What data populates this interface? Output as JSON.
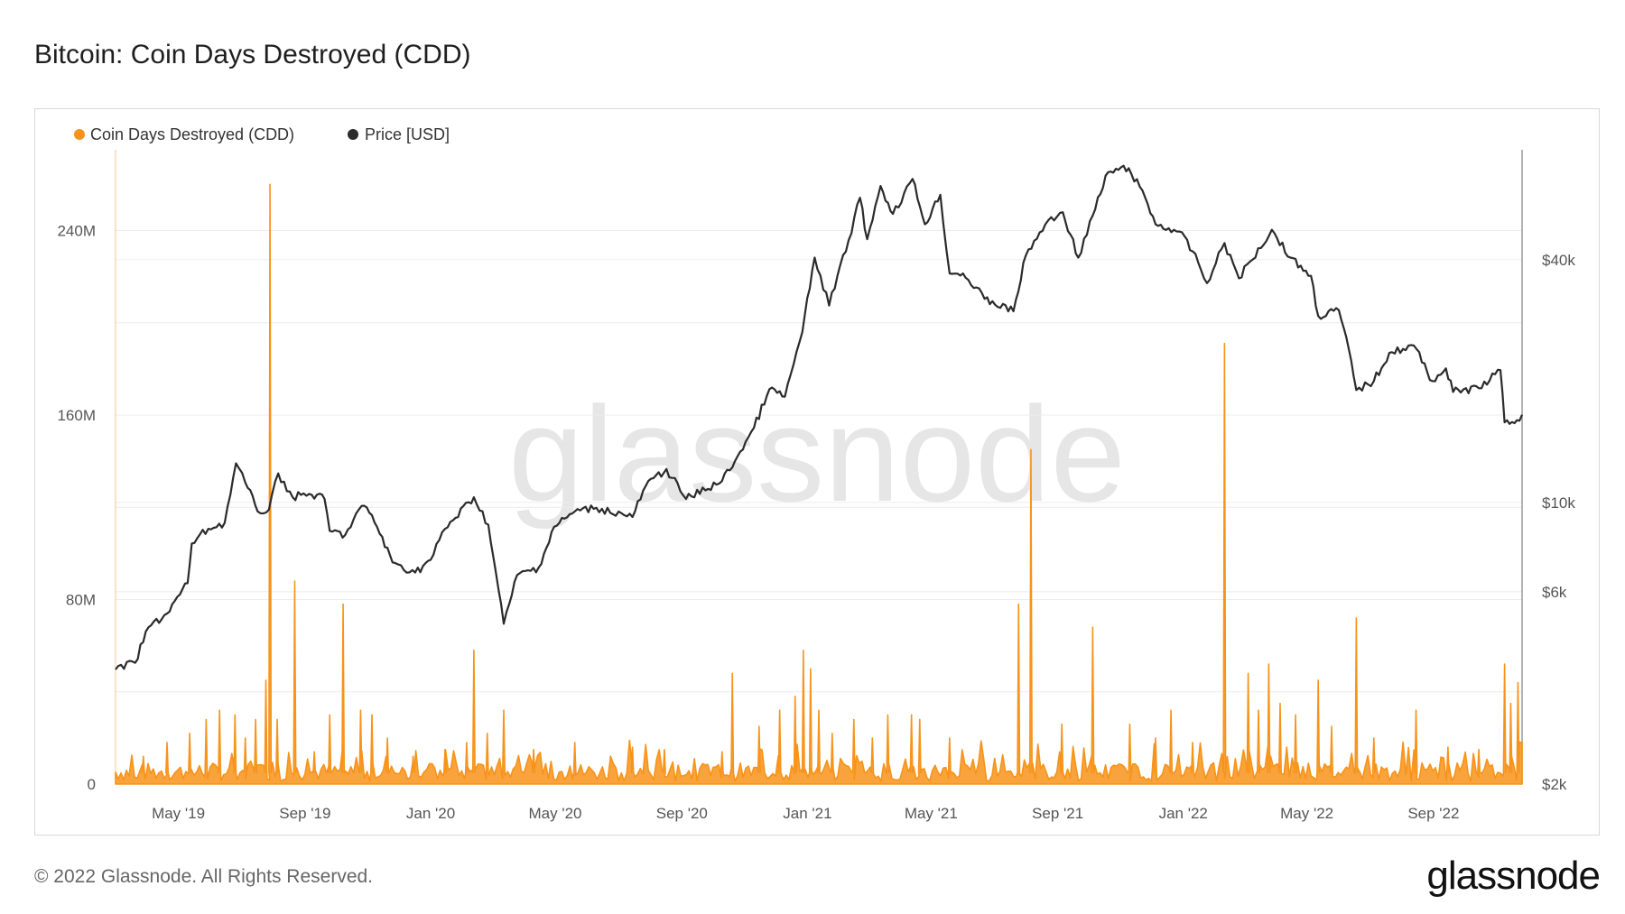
{
  "title": "Bitcoin: Coin Days Destroyed (CDD)",
  "footer": "© 2022 Glassnode. All Rights Reserved.",
  "logo": "glassnode",
  "watermark": "glassnode",
  "colors": {
    "cdd": "#f7931a",
    "price": "#2b2b2b",
    "grid": "#ececec",
    "watermark": "#e6e6e6"
  },
  "chart_data": {
    "type": "line",
    "title": "Bitcoin: Coin Days Destroyed (CDD)",
    "legend": {
      "position": "top-left",
      "entries": [
        "Coin Days Destroyed (CDD)",
        "Price [USD]"
      ]
    },
    "grid": true,
    "x_ticks": [
      "May '19",
      "Sep '19",
      "Jan '20",
      "May '20",
      "Sep '20",
      "Jan '21",
      "May '21",
      "Sep '21",
      "Jan '22",
      "May '22",
      "Sep '22"
    ],
    "x_range": [
      "2019-03-01",
      "2022-11-26"
    ],
    "y_left": {
      "ticks": [
        "0",
        "80M",
        "160M",
        "240M"
      ],
      "range": [
        0,
        275000000
      ]
    },
    "y_right": {
      "scale": "log",
      "ticks": [
        "$2k",
        "$6k",
        "$10k",
        "$40k"
      ],
      "range": [
        2000,
        75000
      ]
    },
    "series": [
      {
        "name": "Coin Days Destroyed (CDD)",
        "axis": "left",
        "style": "area-spikes",
        "baseline": 5000000,
        "spikes": [
          [
            "2019-03-28",
            12000000
          ],
          [
            "2019-04-20",
            18000000
          ],
          [
            "2019-05-12",
            22000000
          ],
          [
            "2019-05-28",
            28000000
          ],
          [
            "2019-06-10",
            32000000
          ],
          [
            "2019-06-25",
            30000000
          ],
          [
            "2019-07-05",
            20000000
          ],
          [
            "2019-07-15",
            28000000
          ],
          [
            "2019-07-25",
            45000000
          ],
          [
            "2019-07-29",
            260000000
          ],
          [
            "2019-08-05",
            28000000
          ],
          [
            "2019-08-22",
            88000000
          ],
          [
            "2019-09-10",
            14000000
          ],
          [
            "2019-09-25",
            30000000
          ],
          [
            "2019-10-08",
            78000000
          ],
          [
            "2019-10-25",
            32000000
          ],
          [
            "2019-11-05",
            30000000
          ],
          [
            "2019-11-20",
            20000000
          ],
          [
            "2019-12-15",
            12000000
          ],
          [
            "2020-01-15",
            15000000
          ],
          [
            "2020-02-05",
            18000000
          ],
          [
            "2020-02-12",
            58000000
          ],
          [
            "2020-02-25",
            22000000
          ],
          [
            "2020-03-12",
            32000000
          ],
          [
            "2020-04-10",
            15000000
          ],
          [
            "2020-05-20",
            18000000
          ],
          [
            "2020-07-15",
            16000000
          ],
          [
            "2020-08-15",
            15000000
          ],
          [
            "2020-10-10",
            14000000
          ],
          [
            "2020-10-20",
            48000000
          ],
          [
            "2020-11-15",
            25000000
          ],
          [
            "2020-12-05",
            32000000
          ],
          [
            "2020-12-20",
            38000000
          ],
          [
            "2020-12-28",
            58000000
          ],
          [
            "2021-01-04",
            50000000
          ],
          [
            "2021-01-12",
            32000000
          ],
          [
            "2021-01-25",
            22000000
          ],
          [
            "2021-02-15",
            28000000
          ],
          [
            "2021-03-05",
            20000000
          ],
          [
            "2021-03-20",
            30000000
          ],
          [
            "2021-04-12",
            30000000
          ],
          [
            "2021-04-20",
            28000000
          ],
          [
            "2021-05-19",
            20000000
          ],
          [
            "2021-07-25",
            78000000
          ],
          [
            "2021-08-06",
            145000000
          ],
          [
            "2021-09-05",
            26000000
          ],
          [
            "2021-10-05",
            68000000
          ],
          [
            "2021-11-10",
            26000000
          ],
          [
            "2021-12-05",
            20000000
          ],
          [
            "2021-12-20",
            32000000
          ],
          [
            "2022-01-10",
            18000000
          ],
          [
            "2022-02-10",
            191000000
          ],
          [
            "2022-03-05",
            48000000
          ],
          [
            "2022-03-15",
            32000000
          ],
          [
            "2022-03-25",
            52000000
          ],
          [
            "2022-04-05",
            35000000
          ],
          [
            "2022-04-20",
            30000000
          ],
          [
            "2022-05-12",
            45000000
          ],
          [
            "2022-05-25",
            25000000
          ],
          [
            "2022-06-18",
            72000000
          ],
          [
            "2022-07-05",
            20000000
          ],
          [
            "2022-08-15",
            32000000
          ],
          [
            "2022-09-15",
            16000000
          ],
          [
            "2022-10-15",
            15000000
          ],
          [
            "2022-11-09",
            52000000
          ],
          [
            "2022-11-15",
            35000000
          ],
          [
            "2022-11-22",
            44000000
          ]
        ]
      },
      {
        "name": "Price [USD]",
        "axis": "right",
        "style": "line",
        "points": [
          [
            "2019-03-01",
            3850
          ],
          [
            "2019-03-20",
            4000
          ],
          [
            "2019-04-02",
            4900
          ],
          [
            "2019-04-20",
            5300
          ],
          [
            "2019-05-10",
            6300
          ],
          [
            "2019-05-14",
            7900
          ],
          [
            "2019-05-30",
            8600
          ],
          [
            "2019-06-15",
            8900
          ],
          [
            "2019-06-26",
            12500
          ],
          [
            "2019-07-05",
            11200
          ],
          [
            "2019-07-17",
            9500
          ],
          [
            "2019-07-28",
            9600
          ],
          [
            "2019-08-06",
            11800
          ],
          [
            "2019-08-20",
            10300
          ],
          [
            "2019-09-05",
            10500
          ],
          [
            "2019-09-20",
            10200
          ],
          [
            "2019-09-25",
            8500
          ],
          [
            "2019-10-10",
            8300
          ],
          [
            "2019-10-26",
            9800
          ],
          [
            "2019-11-05",
            9300
          ],
          [
            "2019-11-25",
            7100
          ],
          [
            "2019-12-17",
            6700
          ],
          [
            "2020-01-01",
            7200
          ],
          [
            "2020-01-15",
            8600
          ],
          [
            "2020-02-12",
            10300
          ],
          [
            "2020-02-26",
            8800
          ],
          [
            "2020-03-12",
            5000
          ],
          [
            "2020-03-25",
            6600
          ],
          [
            "2020-04-15",
            6900
          ],
          [
            "2020-04-30",
            8700
          ],
          [
            "2020-05-20",
            9500
          ],
          [
            "2020-06-10",
            9700
          ],
          [
            "2020-07-15",
            9200
          ],
          [
            "2020-07-28",
            11000
          ],
          [
            "2020-08-17",
            12100
          ],
          [
            "2020-09-05",
            10200
          ],
          [
            "2020-10-10",
            11300
          ],
          [
            "2020-10-25",
            13000
          ],
          [
            "2020-11-10",
            15300
          ],
          [
            "2020-11-25",
            19100
          ],
          [
            "2020-12-10",
            18300
          ],
          [
            "2020-12-27",
            26500
          ],
          [
            "2021-01-08",
            40500
          ],
          [
            "2021-01-22",
            30800
          ],
          [
            "2021-02-10",
            44800
          ],
          [
            "2021-02-21",
            57000
          ],
          [
            "2021-02-28",
            45000
          ],
          [
            "2021-03-13",
            61000
          ],
          [
            "2021-03-25",
            52000
          ],
          [
            "2021-04-13",
            63500
          ],
          [
            "2021-04-25",
            49000
          ],
          [
            "2021-05-10",
            58000
          ],
          [
            "2021-05-19",
            37000
          ],
          [
            "2021-06-01",
            37000
          ],
          [
            "2021-06-22",
            32000
          ],
          [
            "2021-07-20",
            29800
          ],
          [
            "2021-08-01",
            41000
          ],
          [
            "2021-08-20",
            49000
          ],
          [
            "2021-09-06",
            52500
          ],
          [
            "2021-09-21",
            40500
          ],
          [
            "2021-10-05",
            51500
          ],
          [
            "2021-10-20",
            66000
          ],
          [
            "2021-11-09",
            67500
          ],
          [
            "2021-11-25",
            57000
          ],
          [
            "2021-12-05",
            49000
          ],
          [
            "2021-12-28",
            47000
          ],
          [
            "2022-01-10",
            42000
          ],
          [
            "2022-01-24",
            35000
          ],
          [
            "2022-02-10",
            44000
          ],
          [
            "2022-02-24",
            36000
          ],
          [
            "2022-03-28",
            47500
          ],
          [
            "2022-04-15",
            40500
          ],
          [
            "2022-05-05",
            36500
          ],
          [
            "2022-05-12",
            29000
          ],
          [
            "2022-06-01",
            30000
          ],
          [
            "2022-06-13",
            22500
          ],
          [
            "2022-06-18",
            19000
          ],
          [
            "2022-07-05",
            20000
          ],
          [
            "2022-07-20",
            23500
          ],
          [
            "2022-08-13",
            24500
          ],
          [
            "2022-08-31",
            20000
          ],
          [
            "2022-09-13",
            21500
          ],
          [
            "2022-09-20",
            18800
          ],
          [
            "2022-10-15",
            19200
          ],
          [
            "2022-11-05",
            21300
          ],
          [
            "2022-11-09",
            15800
          ],
          [
            "2022-11-21",
            16000
          ],
          [
            "2022-11-26",
            16500
          ]
        ]
      }
    ]
  }
}
